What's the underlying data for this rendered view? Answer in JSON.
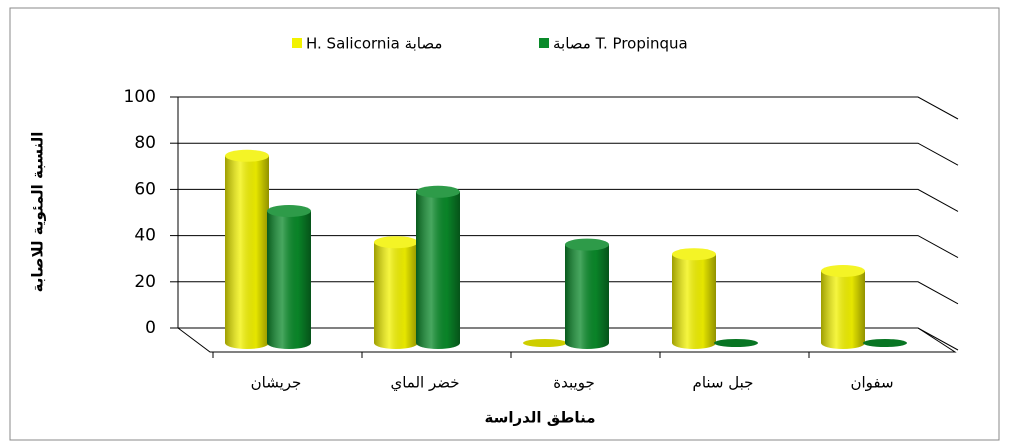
{
  "chart_data": {
    "type": "bar",
    "categories": [
      "جريشان",
      "خضر الماي",
      "جويبدة",
      "جبل سنام",
      "سفوان"
    ],
    "series": [
      {
        "name": "H.  Salicornia مصابة",
        "color": "#f2f200",
        "values": [
          78,
          42,
          0,
          37,
          30
        ]
      },
      {
        "name": "مصابة T. Propinqua",
        "color": "#0a8a2a",
        "values": [
          55,
          63,
          41,
          0,
          0
        ]
      }
    ],
    "ylabel": "النسبة المئوية للاصابة",
    "xlabel": "مناطق الدراسة",
    "ylim": [
      0,
      100
    ],
    "yticks": [
      0,
      20,
      40,
      60,
      80,
      100
    ],
    "grid": true,
    "legend": "top"
  }
}
